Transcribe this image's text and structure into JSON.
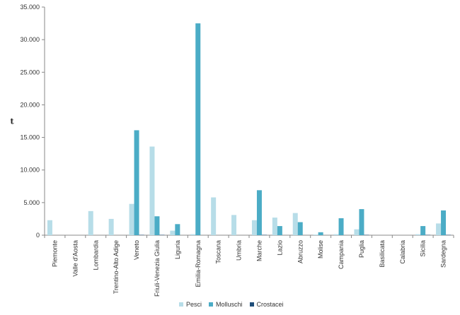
{
  "chart_data": {
    "type": "bar",
    "ylabel": "t",
    "ylim": [
      0,
      35000
    ],
    "yticks": [
      "0",
      "5.000",
      "10.000",
      "15.000",
      "20.000",
      "25.000",
      "30.000",
      "35.000"
    ],
    "ytick_values": [
      0,
      5000,
      10000,
      15000,
      20000,
      25000,
      30000,
      35000
    ],
    "categories": [
      "Piemonte",
      "Valle d'Aosta",
      "Lombardia",
      "Trentino-Alto Adige",
      "Veneto",
      "Friuli-Venezia Giulia",
      "Liguria",
      "Emilia-Romagna",
      "Toscana",
      "Umbria",
      "Marche",
      "Lazio",
      "Abruzzo",
      "Molise",
      "Campania",
      "Puglia",
      "Basilicata",
      "Calabria",
      "Sicilia",
      "Sardegna"
    ],
    "series": [
      {
        "name": "Pesci",
        "color": "#b7dde8",
        "values": [
          2300,
          0,
          3700,
          2500,
          4800,
          13600,
          700,
          150,
          5800,
          3100,
          2300,
          2700,
          3400,
          100,
          150,
          900,
          0,
          0,
          150,
          1800
        ]
      },
      {
        "name": "Molluschi",
        "color": "#4bacc6",
        "values": [
          0,
          0,
          0,
          0,
          16100,
          2900,
          1700,
          32500,
          0,
          0,
          6900,
          1400,
          2000,
          450,
          2600,
          4000,
          0,
          0,
          1400,
          3800
        ]
      },
      {
        "name": "Crostacei",
        "color": "#1f4e79",
        "values": [
          0,
          0,
          0,
          0,
          50,
          50,
          0,
          0,
          0,
          0,
          50,
          0,
          0,
          0,
          0,
          50,
          0,
          0,
          50,
          50
        ]
      }
    ],
    "grid": false,
    "legend_position": "bottom"
  }
}
